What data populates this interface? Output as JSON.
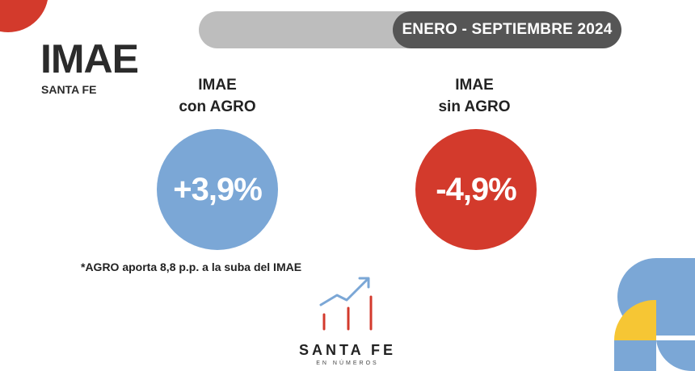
{
  "header": {
    "period": "ENERO - SEPTIEMBRE 2024"
  },
  "title": "IMAE",
  "subtitle": "SANTA FE",
  "indicators": [
    {
      "label_line1": "IMAE",
      "label_line2": "con AGRO",
      "value": "+3,9%",
      "color": "#7ba7d6"
    },
    {
      "label_line1": "IMAE",
      "label_line2": "sin AGRO",
      "value": "-4,9%",
      "color": "#d33a2c"
    }
  ],
  "footnote": "*AGRO aporta 8,8 p.p. a la suba del IMAE",
  "logo": {
    "name": "SANTA FE",
    "tagline": "EN NÚMEROS",
    "icon": "trend-chart-icon"
  },
  "colors": {
    "red": "#d33a2c",
    "blue": "#7ba7d6",
    "yellow": "#f6c634",
    "dark_gray": "#555555",
    "light_gray": "#bdbdbd"
  }
}
